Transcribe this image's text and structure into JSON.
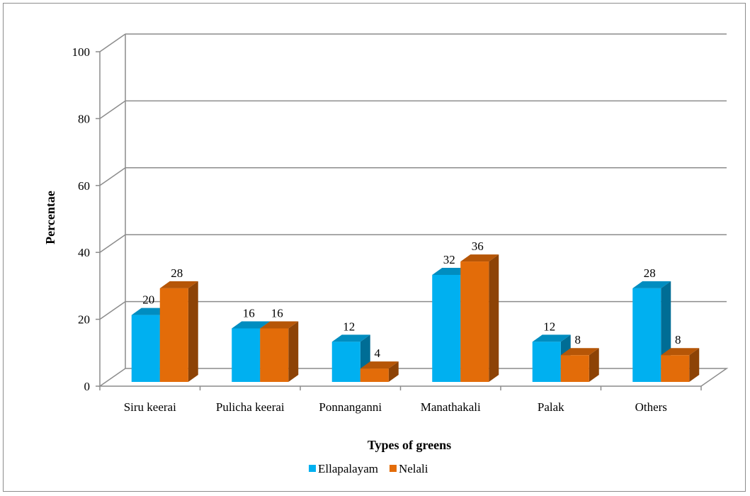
{
  "chart_data": {
    "type": "bar",
    "title": "",
    "xlabel": "Types of greens",
    "ylabel": "Percentae",
    "ylim": [
      0,
      100
    ],
    "yticks": [
      0,
      20,
      40,
      60,
      80,
      100
    ],
    "grid": true,
    "legend_position": "bottom",
    "categories": [
      "Siru keerai",
      "Pulicha keerai",
      "Ponnanganni",
      "Manathakali",
      "Palak",
      "Others"
    ],
    "series": [
      {
        "name": "Ellapalayam",
        "values": [
          20,
          16,
          12,
          32,
          12,
          28
        ],
        "color": "#00B0F0"
      },
      {
        "name": "Nelali",
        "values": [
          28,
          16,
          4,
          36,
          8,
          8
        ],
        "color": "#E36C09"
      }
    ]
  }
}
